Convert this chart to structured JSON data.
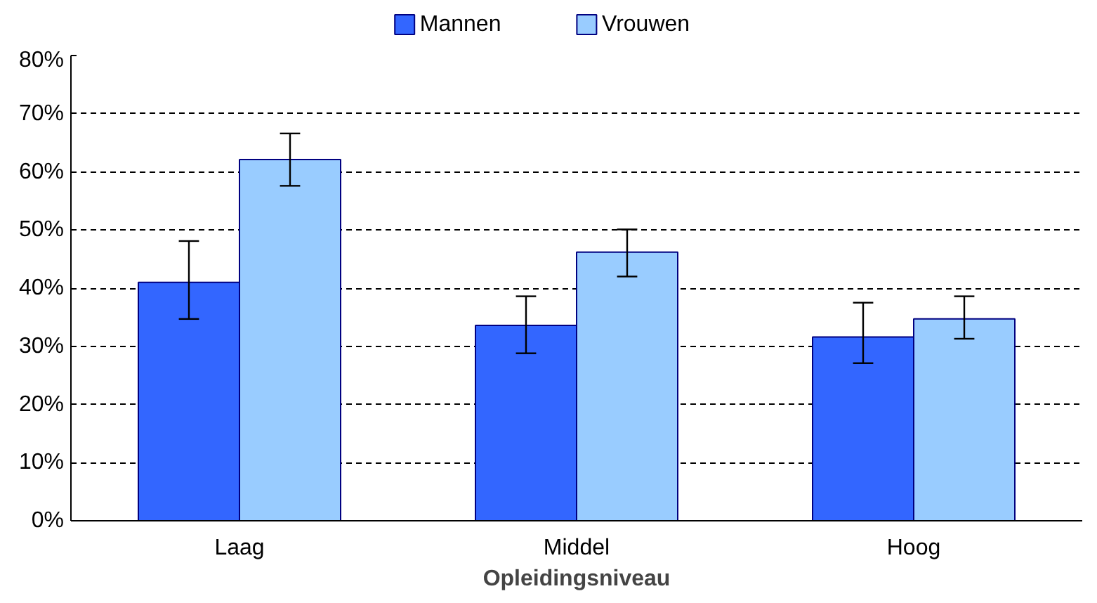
{
  "chart_data": {
    "type": "bar",
    "xlabel": "Opleidingsniveau",
    "categories": [
      "Laag",
      "Middel",
      "Hoog"
    ],
    "series": [
      {
        "name": "Mannen",
        "color": "#3366ff",
        "values": [
          41,
          33.6,
          31.6
        ],
        "errors": [
          [
            34.7,
            48.1
          ],
          [
            28.8,
            38.6
          ],
          [
            27.1,
            37.5
          ]
        ]
      },
      {
        "name": "Vrouwen",
        "color": "#99ccff",
        "values": [
          62.1,
          46.2,
          34.7
        ],
        "errors": [
          [
            57.6,
            66.6
          ],
          [
            42.0,
            50.1
          ],
          [
            31.3,
            38.6
          ]
        ]
      }
    ],
    "ylim": [
      0,
      80
    ],
    "yticks": [
      {
        "value": 0,
        "label": "0%"
      },
      {
        "value": 10,
        "label": "10%"
      },
      {
        "value": 20,
        "label": "20%"
      },
      {
        "value": 30,
        "label": "30%"
      },
      {
        "value": 40,
        "label": "40%"
      },
      {
        "value": 50,
        "label": "50%"
      },
      {
        "value": 60,
        "label": "60%"
      },
      {
        "value": 70,
        "label": "70%"
      },
      {
        "value": 80,
        "label": "80%"
      }
    ],
    "grid": "y",
    "legend": "top"
  }
}
